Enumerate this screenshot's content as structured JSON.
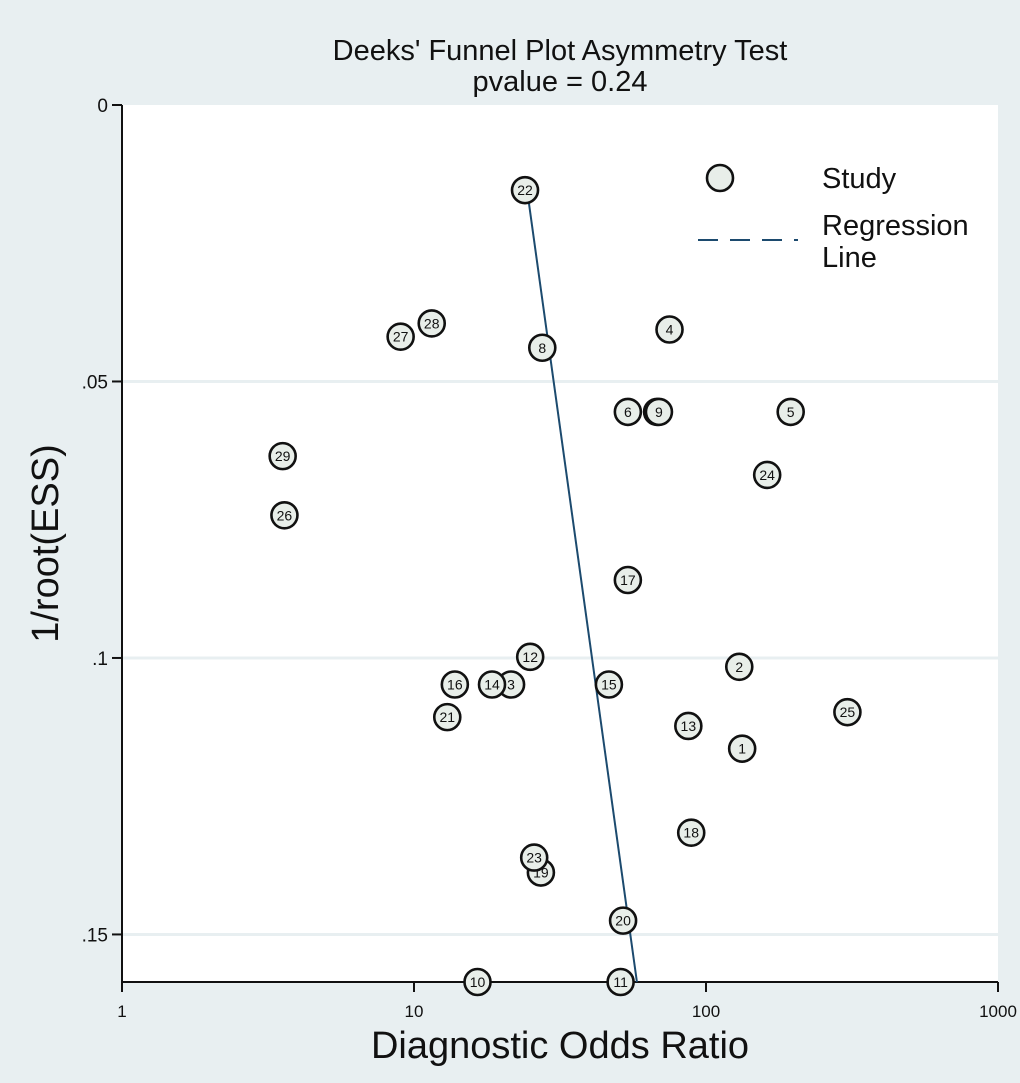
{
  "chart_data": {
    "type": "scatter",
    "title": "Deeks' Funnel Plot Asymmetry Test",
    "subtitle": "pvalue  =   0.24",
    "xlabel": "Diagnostic Odds Ratio",
    "ylabel": "1/root(ESS)",
    "x_scale": "log",
    "xlim": [
      1,
      1000
    ],
    "ylim": [
      0,
      0.1586
    ],
    "y_reversed": true,
    "x_ticks": [
      {
        "value": 1,
        "label": "1"
      },
      {
        "value": 10,
        "label": "10"
      },
      {
        "value": 100,
        "label": "100"
      },
      {
        "value": 1000,
        "label": "1000"
      }
    ],
    "y_ticks": [
      {
        "value": 0,
        "label": "0"
      },
      {
        "value": 0.05,
        "label": ".05"
      },
      {
        "value": 0.1,
        "label": ".1"
      },
      {
        "value": 0.15,
        "label": ".15"
      }
    ],
    "grid": "horizontal",
    "legend_position": "top-right",
    "series": [
      {
        "name": "Study",
        "points": [
          {
            "label": "1",
            "x": 133,
            "y": 0.1164
          },
          {
            "label": "2",
            "x": 130,
            "y": 0.1016
          },
          {
            "label": "3",
            "x": 21.5,
            "y": 0.1048
          },
          {
            "label": "4",
            "x": 75,
            "y": 0.0406
          },
          {
            "label": "5",
            "x": 195,
            "y": 0.0555
          },
          {
            "label": "6",
            "x": 54,
            "y": 0.0555
          },
          {
            "label": "7",
            "x": 68,
            "y": 0.0555
          },
          {
            "label": "9",
            "x": 69,
            "y": 0.0555
          },
          {
            "label": "8",
            "x": 27.5,
            "y": 0.0439
          },
          {
            "label": "10",
            "x": 16.5,
            "y": 0.1586
          },
          {
            "label": "11",
            "x": 51,
            "y": 0.1586
          },
          {
            "label": "12",
            "x": 25,
            "y": 0.0998
          },
          {
            "label": "13",
            "x": 87,
            "y": 0.1123
          },
          {
            "label": "14",
            "x": 18.5,
            "y": 0.1048
          },
          {
            "label": "15",
            "x": 46.5,
            "y": 0.1048
          },
          {
            "label": "16",
            "x": 13.8,
            "y": 0.1048
          },
          {
            "label": "17",
            "x": 54,
            "y": 0.0859
          },
          {
            "label": "18",
            "x": 89,
            "y": 0.1316
          },
          {
            "label": "19",
            "x": 27.2,
            "y": 0.1388
          },
          {
            "label": "20",
            "x": 52,
            "y": 0.1475
          },
          {
            "label": "21",
            "x": 13,
            "y": 0.1107
          },
          {
            "label": "22",
            "x": 24,
            "y": 0.0154
          },
          {
            "label": "23",
            "x": 25.8,
            "y": 0.1361
          },
          {
            "label": "24",
            "x": 162,
            "y": 0.0669
          },
          {
            "label": "25",
            "x": 305,
            "y": 0.1098
          },
          {
            "label": "26",
            "x": 3.6,
            "y": 0.0742
          },
          {
            "label": "27",
            "x": 9,
            "y": 0.0419
          },
          {
            "label": "28",
            "x": 11.5,
            "y": 0.0395
          },
          {
            "label": "29",
            "x": 3.55,
            "y": 0.0635
          }
        ]
      },
      {
        "name": "Regression Line",
        "line": [
          {
            "x": 24.4,
            "y": 0.0154
          },
          {
            "x": 58,
            "y": 0.1586
          }
        ]
      }
    ]
  },
  "legend": {
    "study_label": "Study",
    "regression_label_line1": "Regression",
    "regression_label_line2": "Line"
  },
  "colors": {
    "background": "#e8eff1",
    "plot_area": "#ffffff",
    "marker_fill": "#e8eee9",
    "marker_stroke": "#111111",
    "regression_line": "#1c4a6e",
    "grid": "#e8eff1"
  }
}
